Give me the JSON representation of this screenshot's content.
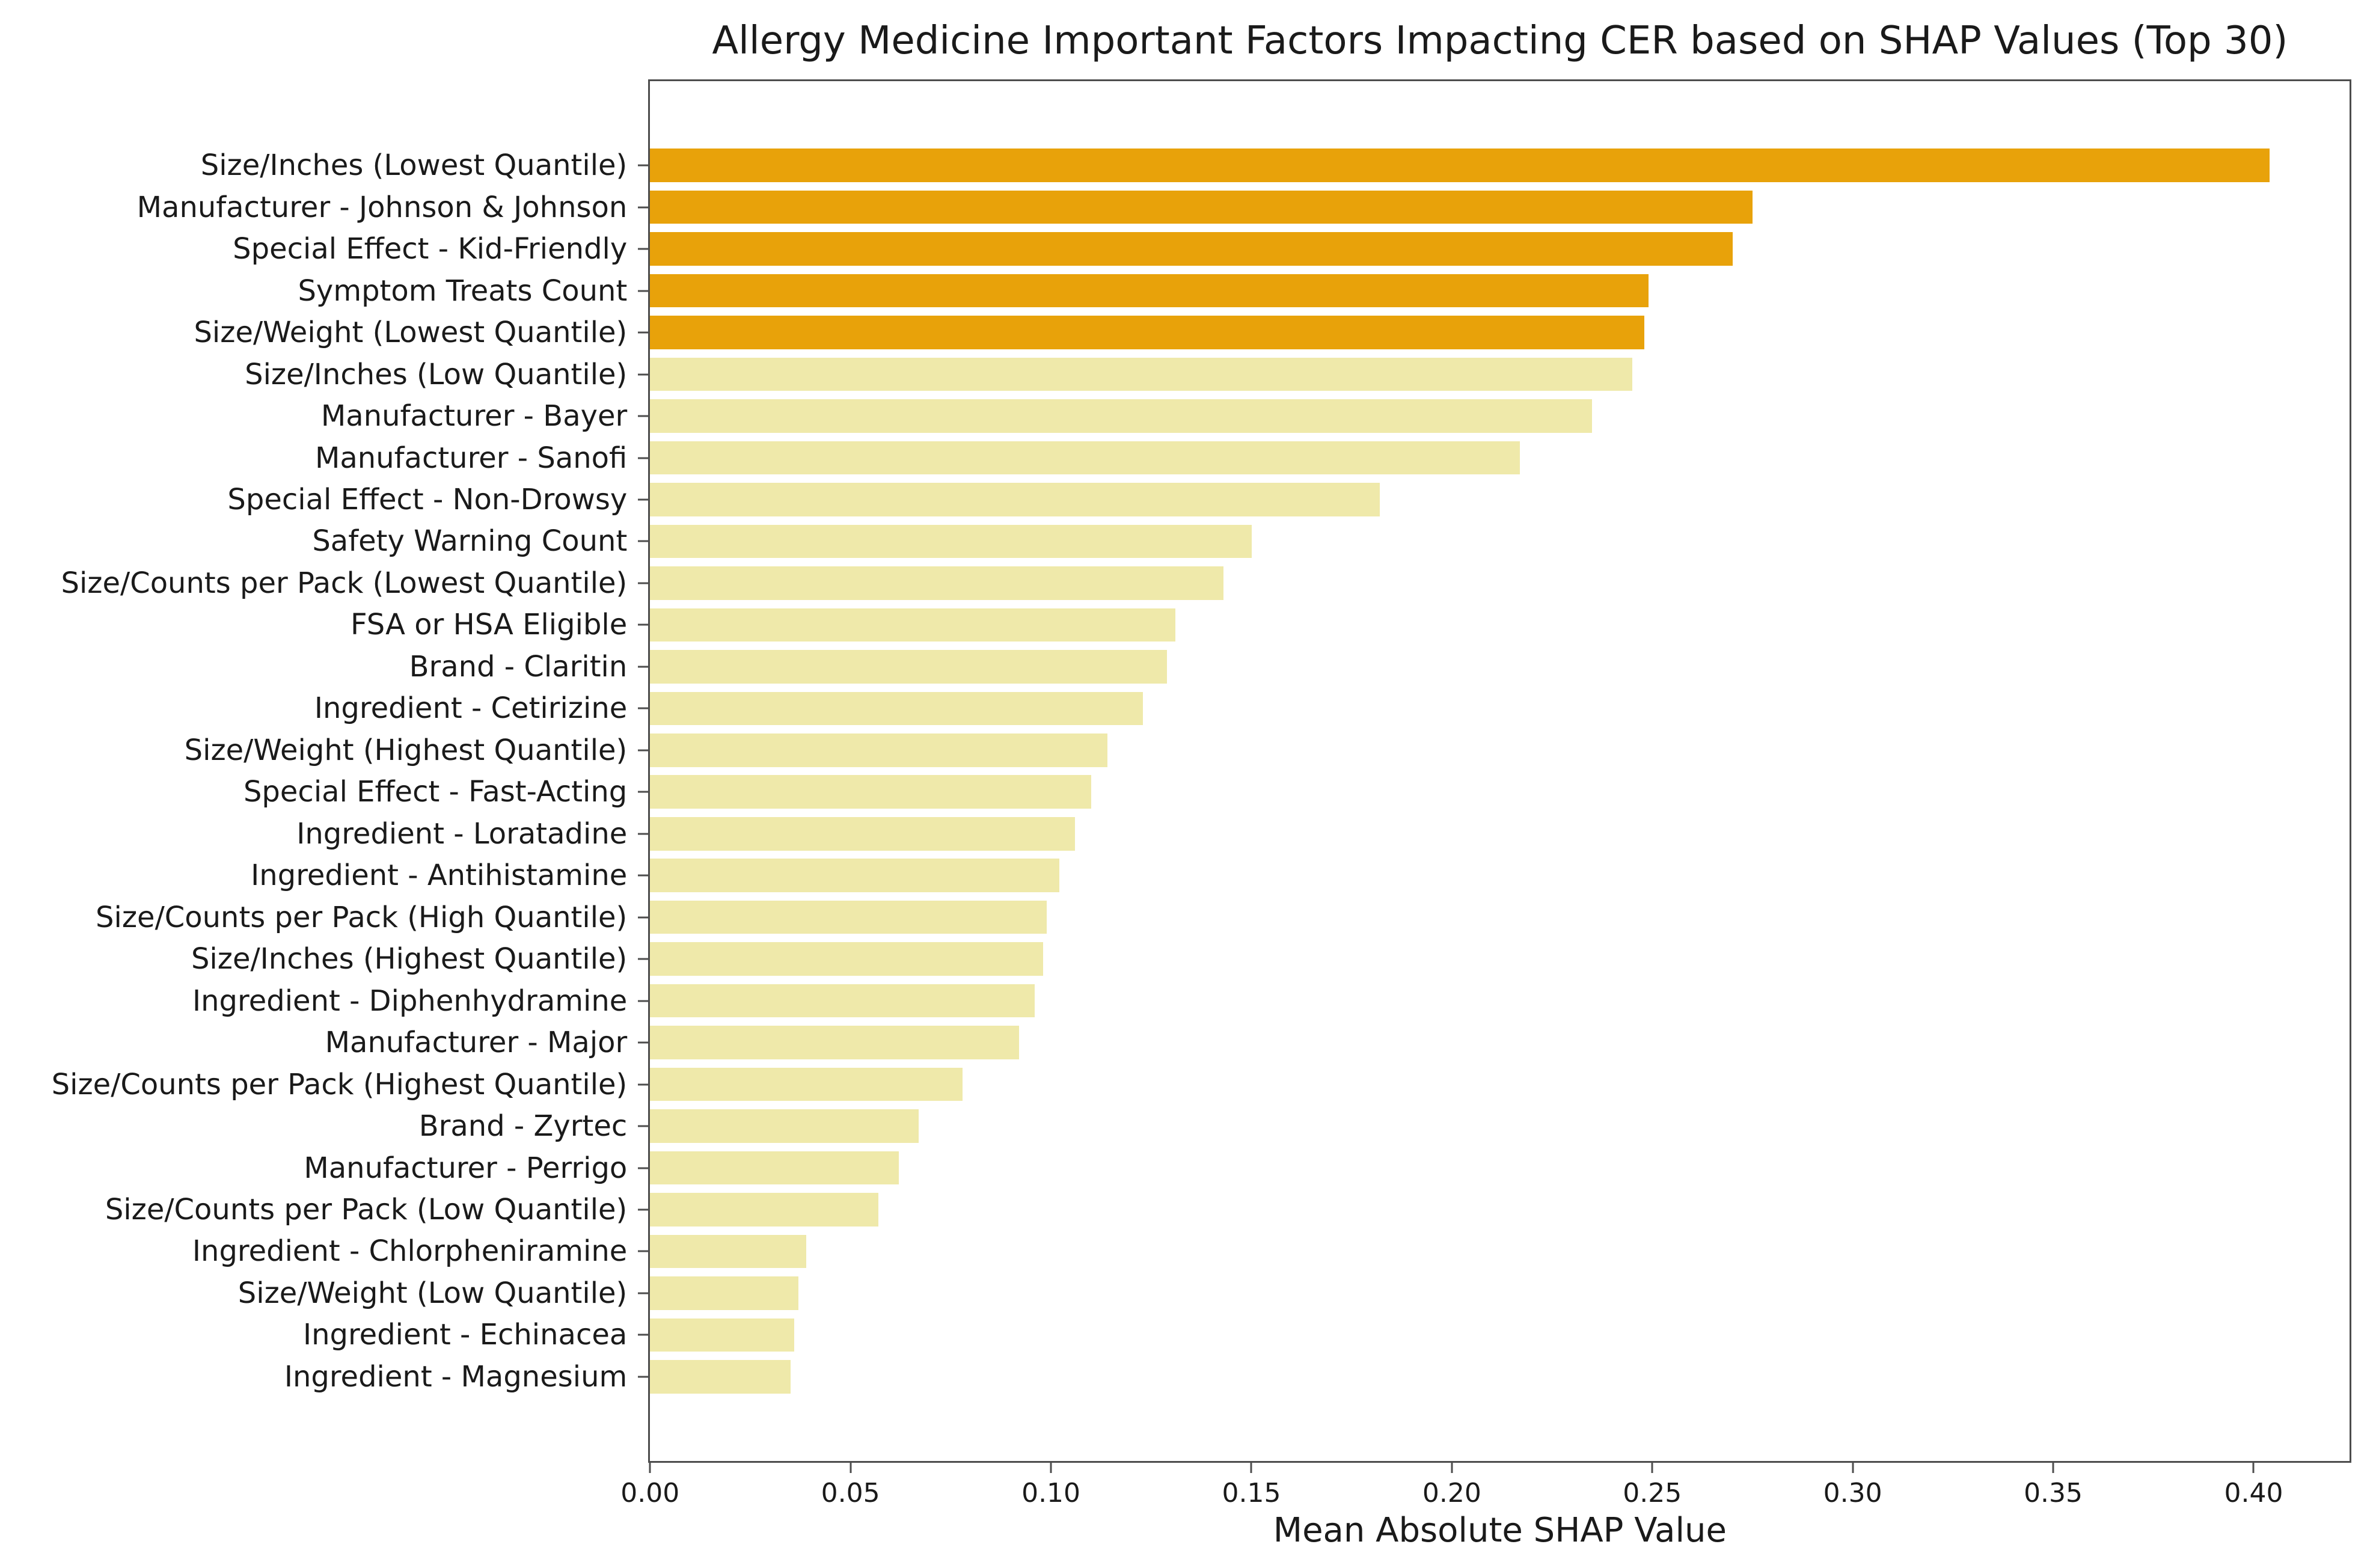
{
  "figure": {
    "background": "#FFFFFF",
    "spine_color": "#4D4D4D",
    "text_color": "#1A1A1A"
  },
  "chart_data": {
    "type": "bar",
    "orientation": "horizontal",
    "title": "Allergy Medicine Important Factors Impacting CER based on SHAP Values (Top 30)",
    "xlabel": "Mean Absolute SHAP Value",
    "ylabel": "",
    "grid": false,
    "legend_position": "none",
    "categories": [
      "Size/Inches (Lowest Quantile)",
      "Manufacturer - Johnson & Johnson",
      "Special Effect - Kid-Friendly",
      "Symptom Treats Count",
      "Size/Weight (Lowest Quantile)",
      "Size/Inches (Low Quantile)",
      "Manufacturer - Bayer",
      "Manufacturer - Sanofi",
      "Special Effect - Non-Drowsy",
      "Safety Warning Count",
      "Size/Counts per Pack (Lowest Quantile)",
      "FSA or HSA Eligible",
      "Brand - Claritin",
      "Ingredient - Cetirizine",
      "Size/Weight (Highest Quantile)",
      "Special Effect - Fast-Acting",
      "Ingredient - Loratadine",
      "Ingredient - Antihistamine",
      "Size/Counts per Pack (High Quantile)",
      "Size/Inches (Highest Quantile)",
      "Ingredient - Diphenhydramine",
      "Manufacturer - Major",
      "Size/Counts per Pack (Highest Quantile)",
      "Brand - Zyrtec",
      "Manufacturer - Perrigo",
      "Size/Counts per Pack (Low Quantile)",
      "Ingredient - Chlorpheniramine",
      "Size/Weight (Low Quantile)",
      "Ingredient - Echinacea",
      "Ingredient - Magnesium"
    ],
    "values": [
      0.404,
      0.275,
      0.27,
      0.249,
      0.248,
      0.245,
      0.235,
      0.217,
      0.182,
      0.15,
      0.143,
      0.131,
      0.129,
      0.123,
      0.114,
      0.11,
      0.106,
      0.102,
      0.099,
      0.098,
      0.096,
      0.092,
      0.078,
      0.067,
      0.062,
      0.057,
      0.039,
      0.037,
      0.036,
      0.035
    ],
    "highlight_count": 5,
    "colors": {
      "highlight": "#E8A20A",
      "base": "#EFE9AA"
    },
    "xlim": [
      0,
      0.424
    ],
    "xticks": {
      "values": [
        0.0,
        0.05,
        0.1,
        0.15,
        0.2,
        0.25,
        0.3,
        0.35,
        0.4
      ],
      "labels": [
        "0.00",
        "0.05",
        "0.10",
        "0.15",
        "0.20",
        "0.25",
        "0.30",
        "0.35",
        "0.40"
      ]
    }
  }
}
